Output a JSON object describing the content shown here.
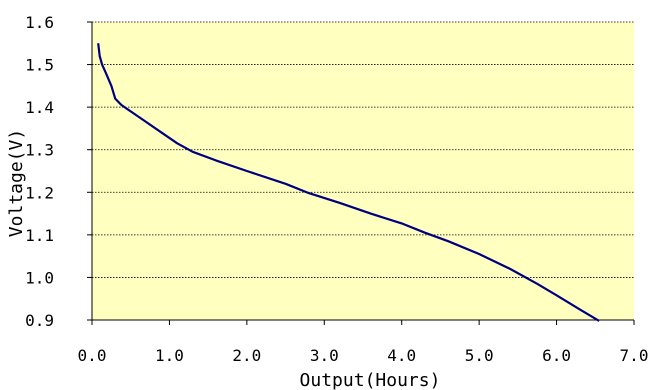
{
  "chart_data": {
    "type": "line",
    "title": "",
    "xlabel": "Output(Hours)",
    "ylabel": "Voltage(V)",
    "xlim": [
      0.0,
      7.0
    ],
    "ylim": [
      0.9,
      1.6
    ],
    "x_ticks": [
      "0.0",
      "1.0",
      "2.0",
      "3.0",
      "4.0",
      "5.0",
      "6.0",
      "7.0"
    ],
    "y_ticks": [
      "0.9",
      "1.0",
      "1.1",
      "1.2",
      "1.3",
      "1.4",
      "1.5",
      "1.6"
    ],
    "grid": "horizontal dotted",
    "plot_background": "#FFFFC0",
    "series": [
      {
        "color": "#00007F",
        "points": [
          [
            0.08,
            1.55
          ],
          [
            0.1,
            1.52
          ],
          [
            0.13,
            1.5
          ],
          [
            0.18,
            1.48
          ],
          [
            0.25,
            1.45
          ],
          [
            0.3,
            1.42
          ],
          [
            0.38,
            1.405
          ],
          [
            0.5,
            1.39
          ],
          [
            0.7,
            1.365
          ],
          [
            0.9,
            1.34
          ],
          [
            1.1,
            1.315
          ],
          [
            1.3,
            1.295
          ],
          [
            1.6,
            1.275
          ],
          [
            2.0,
            1.25
          ],
          [
            2.5,
            1.22
          ],
          [
            2.8,
            1.198
          ],
          [
            3.2,
            1.175
          ],
          [
            3.6,
            1.15
          ],
          [
            4.0,
            1.127
          ],
          [
            4.3,
            1.105
          ],
          [
            4.6,
            1.085
          ],
          [
            5.0,
            1.055
          ],
          [
            5.4,
            1.02
          ],
          [
            5.75,
            0.985
          ],
          [
            6.0,
            0.958
          ],
          [
            6.3,
            0.925
          ],
          [
            6.55,
            0.898
          ]
        ]
      }
    ]
  }
}
